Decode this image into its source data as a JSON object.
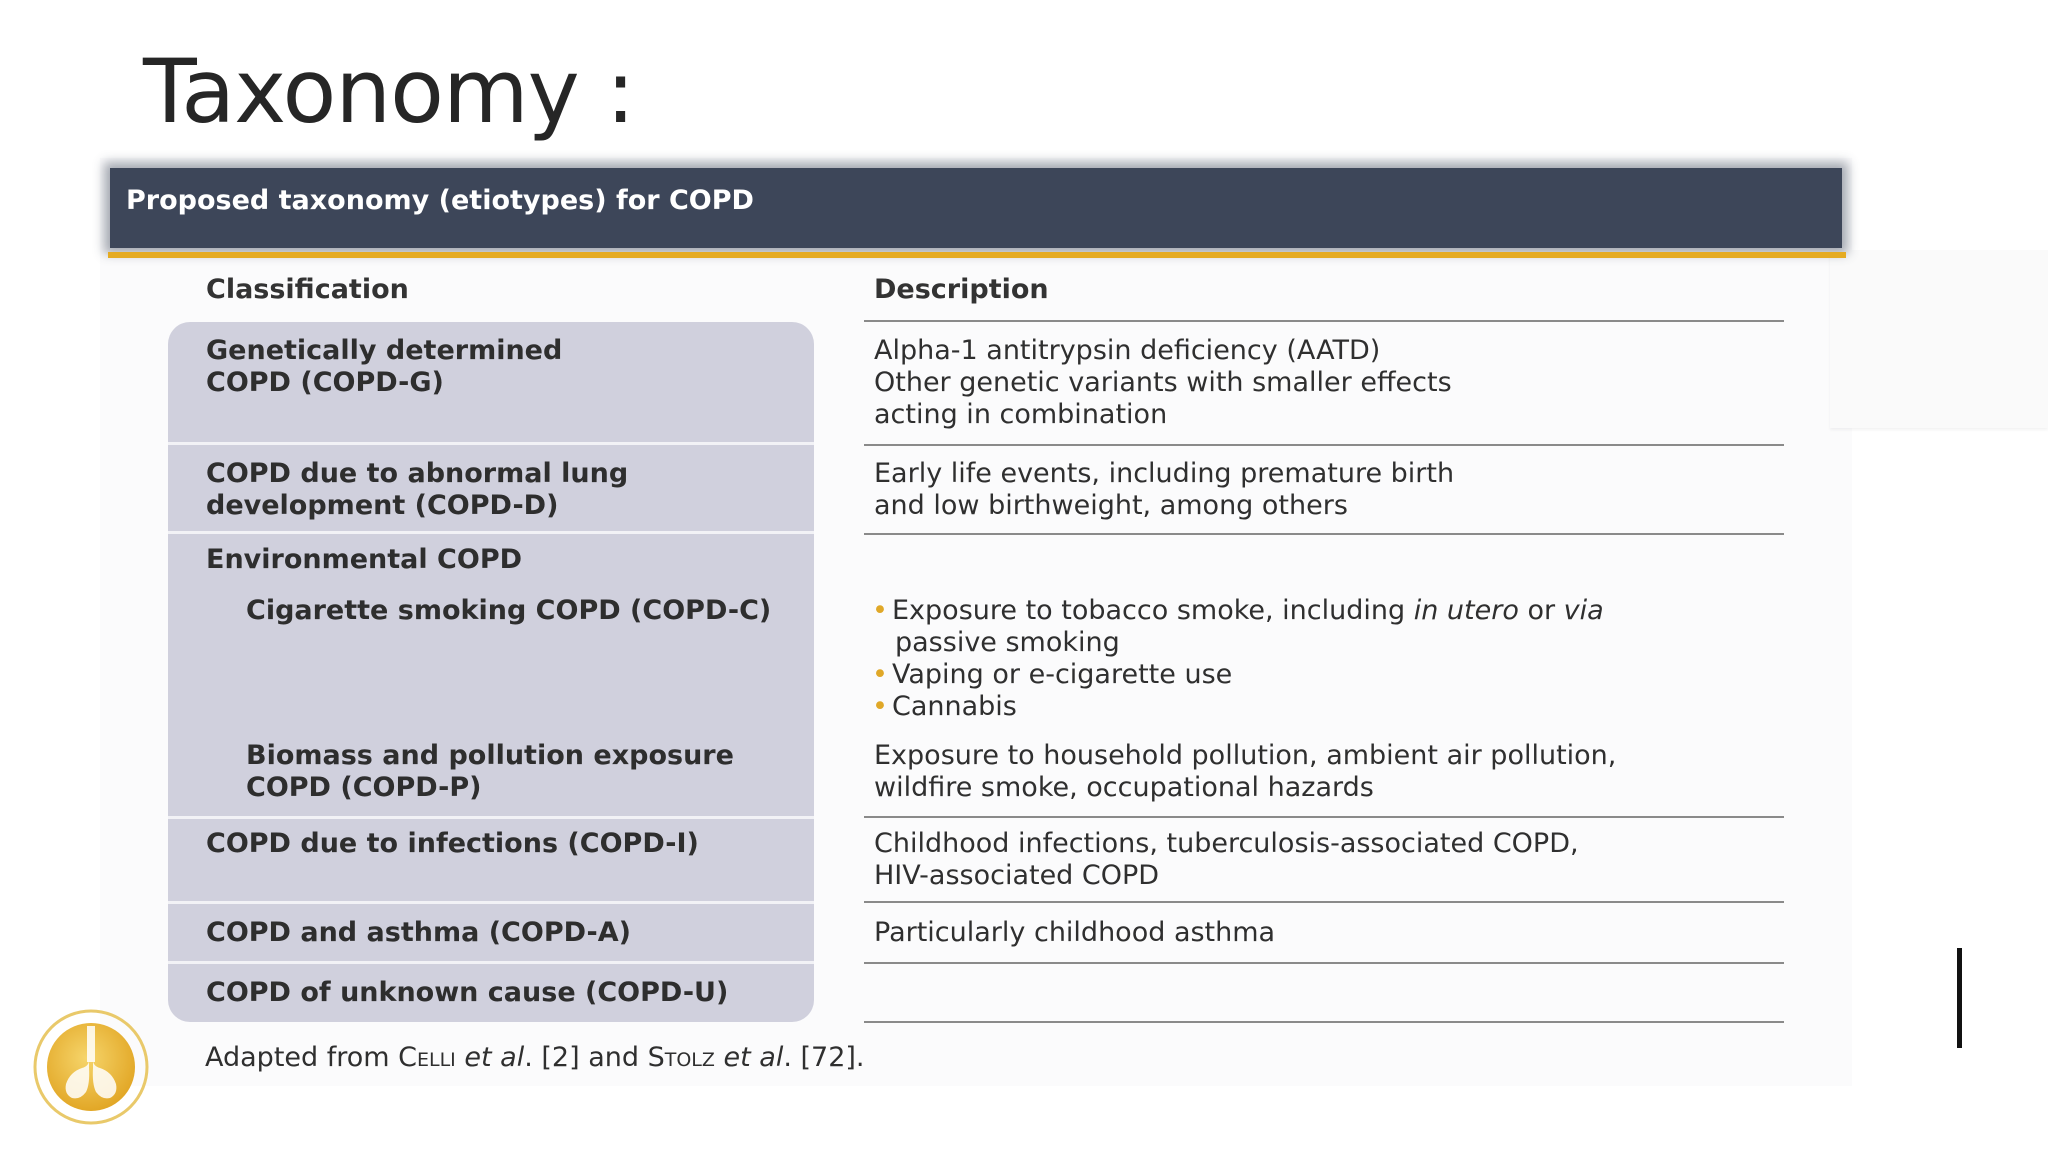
{
  "slide": {
    "title": "Taxonomy :"
  },
  "table": {
    "header": "Proposed taxonomy (etiotypes) for COPD",
    "columns": [
      "Classification",
      "Description"
    ],
    "rows": [
      {
        "classification": [
          "Genetically determined",
          "COPD (COPD-G)"
        ],
        "description": [
          "Alpha-1 antitrypsin deficiency (AATD)",
          "Other genetic variants with smaller effects",
          "acting in combination"
        ]
      },
      {
        "classification": [
          "COPD due to abnormal lung",
          "development (COPD-D)"
        ],
        "description": [
          "Early life events, including premature birth",
          "and low birthweight, among others"
        ]
      },
      {
        "classification": [
          "Environmental COPD"
        ],
        "description": []
      },
      {
        "classification": [
          "Cigarette smoking COPD (COPD-C)"
        ],
        "bullets": [
          {
            "lines": [
              {
                "t1": "Exposure to tobacco smoke, including ",
                "i1": "in utero",
                "t2": " or ",
                "i2": "via"
              },
              {
                "t1": "passive smoking"
              }
            ]
          },
          {
            "lines": [
              {
                "t1": "Vaping or e-cigarette use"
              }
            ]
          },
          {
            "lines": [
              {
                "t1": "Cannabis"
              }
            ]
          }
        ]
      },
      {
        "classification": [
          "Biomass and pollution exposure",
          "COPD (COPD-P)"
        ],
        "description": [
          "Exposure to household pollution, ambient air pollution,",
          "wildfire smoke, occupational hazards"
        ]
      },
      {
        "classification": [
          "COPD due to infections (COPD-I)"
        ],
        "description": [
          "Childhood infections, tuberculosis-associated COPD,",
          "HIV-associated COPD"
        ]
      },
      {
        "classification": [
          "COPD and asthma (COPD-A)"
        ],
        "description": [
          "Particularly childhood asthma"
        ]
      },
      {
        "classification": [
          "COPD of unknown cause (COPD-U)"
        ],
        "description": []
      }
    ],
    "footnote": {
      "prefix": "Adapted from ",
      "author1": "Celli",
      "etal1": " et al",
      "ref1": ". [2] and ",
      "author2": "Stolz",
      "etal2": " et al",
      "ref2": ". [72]."
    }
  },
  "logo": {
    "icon": "gold-lungs-logo-icon",
    "color": "#e8b530"
  },
  "colors": {
    "header_bg": "#3d4659",
    "accent_gold": "#e5ab22",
    "row_bg": "#d0d0dd"
  }
}
